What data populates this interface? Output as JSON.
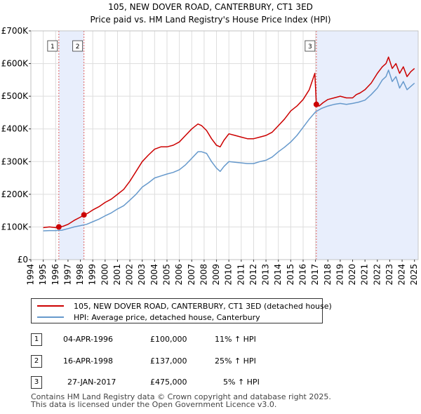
{
  "chart_data": {
    "type": "line",
    "title": "105, NEW DOVER ROAD, CANTERBURY, CT1 3ED",
    "subtitle": "Price paid vs. HM Land Registry's House Price Index (HPI)",
    "xlim": [
      1994,
      2025.3
    ],
    "ylim": [
      0,
      700000
    ],
    "y_ticks": [
      0,
      100000,
      200000,
      300000,
      400000,
      500000,
      600000,
      700000
    ],
    "y_tick_labels": [
      "£0",
      "£100K",
      "£200K",
      "£300K",
      "£400K",
      "£500K",
      "£600K",
      "£700K"
    ],
    "x_ticks": [
      1994,
      1995,
      1996,
      1997,
      1998,
      1999,
      2000,
      2001,
      2002,
      2003,
      2004,
      2005,
      2006,
      2007,
      2008,
      2009,
      2010,
      2011,
      2012,
      2013,
      2014,
      2015,
      2016,
      2017,
      2018,
      2019,
      2020,
      2021,
      2022,
      2023,
      2024,
      2025
    ],
    "x_tick_labels": [
      "1994",
      "1995",
      "1996",
      "1997",
      "1998",
      "1999",
      "2000",
      "2001",
      "2002",
      "2003",
      "2004",
      "2005",
      "2006",
      "2007",
      "2008",
      "2009",
      "2010",
      "2011",
      "2012",
      "2013",
      "2014",
      "2015",
      "2016",
      "2017",
      "2018",
      "2019",
      "2020",
      "2021",
      "2022",
      "2023",
      "2024",
      "2025"
    ],
    "grid": true,
    "series": [
      {
        "name": "105, NEW DOVER ROAD, CANTERBURY, CT1 3ED (detached house)",
        "color": "#cc0000",
        "x": [
          1995.0,
          1995.5,
          1996.0,
          1996.26,
          1996.6,
          1997.0,
          1997.5,
          1998.0,
          1998.29,
          1998.6,
          1999.0,
          1999.5,
          2000.0,
          2000.5,
          2001.0,
          2001.5,
          2002.0,
          2002.5,
          2003.0,
          2003.5,
          2004.0,
          2004.5,
          2005.0,
          2005.5,
          2006.0,
          2006.5,
          2007.0,
          2007.5,
          2007.8,
          2008.2,
          2008.6,
          2009.0,
          2009.3,
          2009.6,
          2010.0,
          2010.5,
          2011.0,
          2011.5,
          2012.0,
          2012.5,
          2013.0,
          2013.5,
          2014.0,
          2014.5,
          2015.0,
          2015.5,
          2016.0,
          2016.5,
          2016.95,
          2017.07,
          2017.3,
          2017.6,
          2018.0,
          2018.5,
          2019.0,
          2019.5,
          2020.0,
          2020.3,
          2020.6,
          2021.0,
          2021.5,
          2022.0,
          2022.4,
          2022.7,
          2022.9,
          2023.2,
          2023.5,
          2023.8,
          2024.1,
          2024.4,
          2024.7,
          2025.0
        ],
        "values": [
          98000,
          100000,
          98000,
          100000,
          102000,
          108000,
          120000,
          130000,
          137000,
          142000,
          152000,
          162000,
          175000,
          185000,
          200000,
          215000,
          240000,
          270000,
          300000,
          320000,
          338000,
          345000,
          345000,
          350000,
          360000,
          380000,
          400000,
          415000,
          410000,
          395000,
          370000,
          350000,
          345000,
          365000,
          385000,
          380000,
          375000,
          370000,
          370000,
          375000,
          380000,
          390000,
          410000,
          430000,
          455000,
          470000,
          490000,
          520000,
          570000,
          475000,
          470000,
          480000,
          490000,
          495000,
          500000,
          495000,
          495000,
          505000,
          510000,
          520000,
          540000,
          570000,
          590000,
          600000,
          620000,
          585000,
          600000,
          570000,
          590000,
          560000,
          575000,
          585000
        ]
      },
      {
        "name": "HPI: Average price, detached house, Canterbury",
        "color": "#6699cc",
        "x": [
          1995.0,
          1995.5,
          1996.0,
          1996.5,
          1997.0,
          1997.5,
          1998.0,
          1998.5,
          1999.0,
          1999.5,
          2000.0,
          2000.5,
          2001.0,
          2001.5,
          2002.0,
          2002.5,
          2003.0,
          2003.5,
          2004.0,
          2004.5,
          2005.0,
          2005.5,
          2006.0,
          2006.5,
          2007.0,
          2007.5,
          2007.8,
          2008.2,
          2008.6,
          2009.0,
          2009.3,
          2009.6,
          2010.0,
          2010.5,
          2011.0,
          2011.5,
          2012.0,
          2012.5,
          2013.0,
          2013.5,
          2014.0,
          2014.5,
          2015.0,
          2015.5,
          2016.0,
          2016.5,
          2017.0,
          2017.5,
          2018.0,
          2018.5,
          2019.0,
          2019.5,
          2020.0,
          2020.5,
          2021.0,
          2021.5,
          2022.0,
          2022.4,
          2022.7,
          2022.9,
          2023.2,
          2023.5,
          2023.8,
          2024.1,
          2024.4,
          2024.7,
          2025.0
        ],
        "values": [
          88000,
          89000,
          89000,
          90000,
          95000,
          100000,
          104000,
          108000,
          116000,
          124000,
          134000,
          143000,
          155000,
          165000,
          182000,
          200000,
          222000,
          235000,
          250000,
          256000,
          262000,
          267000,
          275000,
          290000,
          310000,
          330000,
          330000,
          325000,
          300000,
          280000,
          270000,
          285000,
          300000,
          298000,
          296000,
          294000,
          294000,
          300000,
          304000,
          314000,
          330000,
          344000,
          360000,
          380000,
          405000,
          430000,
          452000,
          463000,
          470000,
          475000,
          478000,
          475000,
          478000,
          482000,
          488000,
          505000,
          525000,
          550000,
          560000,
          580000,
          545000,
          560000,
          525000,
          545000,
          520000,
          530000,
          540000
        ]
      }
    ],
    "sales": [
      {
        "label": "1",
        "year": 1996.26,
        "price": 100000
      },
      {
        "label": "2",
        "year": 1998.29,
        "price": 137000
      },
      {
        "label": "3",
        "year": 2017.07,
        "price": 475000
      }
    ]
  },
  "legend": {
    "items": [
      {
        "label": "105, NEW DOVER ROAD, CANTERBURY, CT1 3ED (detached house)",
        "color": "#cc0000"
      },
      {
        "label": "HPI: Average price, detached house, Canterbury",
        "color": "#6699cc"
      }
    ]
  },
  "sales_table": [
    {
      "num": "1",
      "date": "04-APR-1996",
      "price": "£100,000",
      "hpi": "11% ↑ HPI"
    },
    {
      "num": "2",
      "date": "16-APR-1998",
      "price": "£137,000",
      "hpi": "25% ↑ HPI"
    },
    {
      "num": "3",
      "date": "27-JAN-2017",
      "price": "£475,000",
      "hpi": "5% ↑ HPI"
    }
  ],
  "footer": {
    "line1": "Contains HM Land Registry data © Crown copyright and database right 2025.",
    "line2": "This data is licensed under the Open Government Licence v3.0."
  }
}
